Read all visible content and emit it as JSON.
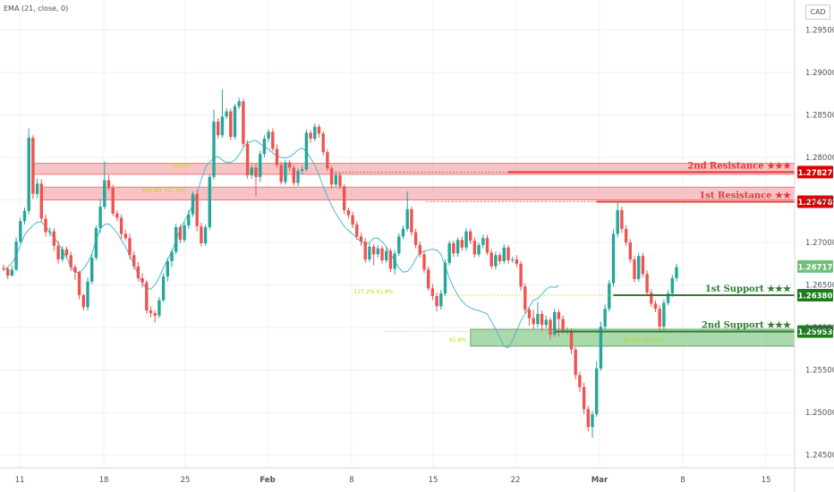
{
  "legend": {
    "label": "EMA (21, close, 0)"
  },
  "currency": "CAD",
  "colors": {
    "up": "#26a69a",
    "down": "#ef5350",
    "ema": "#4fb6d6",
    "resistance": "#e53935",
    "resistance_zone": "#f4a3a8",
    "support": "#2e7d32",
    "support_zone": "#7cc47f",
    "fib": "#c3d500",
    "price_tag": "#6fbf7a",
    "axis_text": "#4c525e"
  },
  "chart_data": {
    "type": "candlestick",
    "x_ticks": [
      "11",
      "18",
      "25",
      "Feb",
      "8",
      "15",
      "22",
      "Mar",
      "8",
      "15"
    ],
    "y_ticks": [
      "1.29500",
      "1.29000",
      "1.28500",
      "1.28000",
      "1.27500",
      "1.27000",
      "1.26500",
      "1.26000",
      "1.25500",
      "1.25000",
      "1.24500"
    ],
    "ylim": [
      1.2435,
      1.2985
    ],
    "levels": [
      {
        "label": "2nd Resistance ★★★",
        "value": 1.27827,
        "tag": "1.27827",
        "kind": "resistance"
      },
      {
        "label": "1st Resistance ★★",
        "value": 1.27478,
        "tag": "1.27478",
        "kind": "resistance"
      },
      {
        "label": "1st Support ★★★",
        "value": 1.2638,
        "tag": "1.26380",
        "kind": "support"
      },
      {
        "label": "2nd Support ★★★",
        "value": 1.25953,
        "tag": "1.25953",
        "kind": "support"
      }
    ],
    "last_price": {
      "value": 1.26717,
      "tag": "1.26717"
    },
    "zones": [
      {
        "kind": "resistance",
        "from": 1.278,
        "to": 1.2793,
        "start_index": 7
      },
      {
        "kind": "resistance",
        "from": 1.275,
        "to": 1.2765,
        "start_index": 9
      },
      {
        "kind": "support",
        "from": 1.2578,
        "to": 1.2598,
        "start_index": 111
      }
    ],
    "fib_labels": [
      {
        "text": "78.6%",
        "price": 1.2788,
        "index": 42
      },
      {
        "text": "161.8% 127.2%",
        "price": 1.2758,
        "index": 38
      },
      {
        "text": "127.2% 61.8%",
        "price": 1.2639,
        "index": 88
      },
      {
        "text": "61.8%",
        "price": 1.2582,
        "index": 108
      },
      {
        "text": "61.8% 127.2%",
        "price": 1.2582,
        "index": 152
      }
    ],
    "ema": [
      1.2667,
      1.2671,
      1.2676,
      1.2684,
      1.2697,
      1.2709,
      1.2715,
      1.272,
      1.2724,
      1.2724,
      1.2719,
      1.2712,
      1.2706,
      1.2699,
      1.269,
      1.2682,
      1.2672,
      1.2665,
      1.2664,
      1.2669,
      1.2676,
      1.2687,
      1.2703,
      1.2716,
      1.2721,
      1.2722,
      1.2717,
      1.2711,
      1.2703,
      1.2695,
      1.2685,
      1.2674,
      1.2662,
      1.2652,
      1.2646,
      1.2645,
      1.265,
      1.2659,
      1.267,
      1.268,
      1.2689,
      1.2702,
      1.2716,
      1.2725,
      1.2734,
      1.2744,
      1.2758,
      1.2774,
      1.2788,
      1.2795,
      1.2799,
      1.2801,
      1.2797,
      1.2794,
      1.2794,
      1.2797,
      1.2803,
      1.2812,
      1.2817,
      1.2819,
      1.282,
      1.2816,
      1.2812,
      1.281,
      1.2805,
      1.2802,
      1.28,
      1.2799,
      1.2801,
      1.2804,
      1.2809,
      1.2811,
      1.2807,
      1.2799,
      1.2791,
      1.2779,
      1.2766,
      1.2754,
      1.2743,
      1.2734,
      1.2726,
      1.2719,
      1.2714,
      1.271,
      1.2705,
      1.2701,
      1.2698,
      1.27,
      1.2705,
      1.2705,
      1.2701,
      1.2695,
      1.2687,
      1.2678,
      1.267,
      1.2665,
      1.2666,
      1.2671,
      1.2681,
      1.2688,
      1.269,
      1.2691,
      1.2692,
      1.2691,
      1.2686,
      1.2672,
      1.2658,
      1.2647,
      1.2638,
      1.2631,
      1.2626,
      1.2623,
      1.2621,
      1.262,
      1.2618,
      1.2616,
      1.2607,
      1.2598,
      1.2588,
      1.2578,
      1.2576,
      1.2585,
      1.2596,
      1.2608,
      1.2616,
      1.2624,
      1.2632,
      1.2634,
      1.2639,
      1.2645,
      1.2648,
      1.2647,
      1.2649
    ],
    "candles": [
      [
        1.267,
        1.2669,
        1.2674,
        1.2666
      ],
      [
        1.2669,
        1.2661,
        1.2671,
        1.2657
      ],
      [
        1.2661,
        1.2668,
        1.2673,
        1.266
      ],
      [
        1.2668,
        1.2701,
        1.2706,
        1.2666
      ],
      [
        1.2701,
        1.2725,
        1.2729,
        1.2699
      ],
      [
        1.2725,
        1.2737,
        1.2741,
        1.2721
      ],
      [
        1.2737,
        1.2823,
        1.2834,
        1.2733
      ],
      [
        1.2823,
        1.2757,
        1.2826,
        1.2751
      ],
      [
        1.2757,
        1.2769,
        1.2775,
        1.2752
      ],
      [
        1.2769,
        1.2728,
        1.2774,
        1.2724
      ],
      [
        1.2728,
        1.2712,
        1.2733,
        1.2707
      ],
      [
        1.2712,
        1.2713,
        1.2718,
        1.2707
      ],
      [
        1.2713,
        1.2696,
        1.2717,
        1.269
      ],
      [
        1.2696,
        1.268,
        1.2702,
        1.2675
      ],
      [
        1.268,
        1.2692,
        1.2696,
        1.2677
      ],
      [
        1.2692,
        1.2685,
        1.2695,
        1.2681
      ],
      [
        1.2685,
        1.2671,
        1.2689,
        1.2666
      ],
      [
        1.2671,
        1.2665,
        1.2674,
        1.2656
      ],
      [
        1.2665,
        1.2638,
        1.2667,
        1.2633
      ],
      [
        1.2638,
        1.2624,
        1.264,
        1.262
      ],
      [
        1.2624,
        1.2654,
        1.2659,
        1.262
      ],
      [
        1.2654,
        1.2682,
        1.2686,
        1.2651
      ],
      [
        1.2682,
        1.2717,
        1.272,
        1.2679
      ],
      [
        1.2717,
        1.2742,
        1.2751,
        1.2711
      ],
      [
        1.2742,
        1.2773,
        1.2795,
        1.2739
      ],
      [
        1.2773,
        1.2764,
        1.2779,
        1.2761
      ],
      [
        1.2764,
        1.2734,
        1.2768,
        1.2731
      ],
      [
        1.2734,
        1.2729,
        1.2738,
        1.2725
      ],
      [
        1.2729,
        1.271,
        1.2733,
        1.2704
      ],
      [
        1.271,
        1.2705,
        1.2715,
        1.2702
      ],
      [
        1.2705,
        1.2685,
        1.271,
        1.268
      ],
      [
        1.2685,
        1.2672,
        1.269,
        1.2668
      ],
      [
        1.2672,
        1.2658,
        1.2677,
        1.2654
      ],
      [
        1.2658,
        1.2653,
        1.2664,
        1.2647
      ],
      [
        1.2653,
        1.262,
        1.2656,
        1.2616
      ],
      [
        1.262,
        1.2617,
        1.2625,
        1.2612
      ],
      [
        1.2617,
        1.2614,
        1.262,
        1.2606
      ],
      [
        1.2614,
        1.2632,
        1.2636,
        1.2611
      ],
      [
        1.2632,
        1.266,
        1.2664,
        1.263
      ],
      [
        1.266,
        1.2678,
        1.2682,
        1.2654
      ],
      [
        1.2678,
        1.2689,
        1.2692,
        1.2671
      ],
      [
        1.2689,
        1.2718,
        1.2722,
        1.2686
      ],
      [
        1.2718,
        1.2703,
        1.2721,
        1.2699
      ],
      [
        1.2703,
        1.272,
        1.2723,
        1.27
      ],
      [
        1.272,
        1.2733,
        1.2738,
        1.2716
      ],
      [
        1.2733,
        1.2757,
        1.276,
        1.273
      ],
      [
        1.2757,
        1.2719,
        1.2761,
        1.2713
      ],
      [
        1.2719,
        1.2699,
        1.2723,
        1.2695
      ],
      [
        1.2699,
        1.2718,
        1.2721,
        1.2696
      ],
      [
        1.2718,
        1.2777,
        1.278,
        1.2715
      ],
      [
        1.2777,
        1.2842,
        1.2856,
        1.2774
      ],
      [
        1.2842,
        1.2826,
        1.2846,
        1.2822
      ],
      [
        1.2826,
        1.2848,
        1.288,
        1.2823
      ],
      [
        1.2848,
        1.2854,
        1.2858,
        1.2845
      ],
      [
        1.2854,
        1.2824,
        1.2857,
        1.282
      ],
      [
        1.2824,
        1.286,
        1.2863,
        1.2821
      ],
      [
        1.286,
        1.2866,
        1.287,
        1.2857
      ],
      [
        1.2866,
        1.2816,
        1.2869,
        1.2812
      ],
      [
        1.2816,
        1.2779,
        1.282,
        1.2775
      ],
      [
        1.2779,
        1.2788,
        1.2791,
        1.2775
      ],
      [
        1.2788,
        1.2777,
        1.2792,
        1.2754
      ],
      [
        1.2777,
        1.2804,
        1.2808,
        1.2771
      ],
      [
        1.2804,
        1.2822,
        1.2826,
        1.28
      ],
      [
        1.2822,
        1.283,
        1.2833,
        1.2818
      ],
      [
        1.283,
        1.281,
        1.2834,
        1.2807
      ],
      [
        1.281,
        1.2791,
        1.2815,
        1.2788
      ],
      [
        1.2791,
        1.2771,
        1.2795,
        1.2768
      ],
      [
        1.2771,
        1.2794,
        1.2797,
        1.2768
      ],
      [
        1.2794,
        1.2788,
        1.2797,
        1.2784
      ],
      [
        1.2788,
        1.277,
        1.2791,
        1.2767
      ],
      [
        1.277,
        1.2784,
        1.2787,
        1.2766
      ],
      [
        1.2784,
        1.2786,
        1.279,
        1.278
      ],
      [
        1.2786,
        1.2829,
        1.2833,
        1.2783
      ],
      [
        1.2829,
        1.2822,
        1.2832,
        1.2817
      ],
      [
        1.2822,
        1.2836,
        1.284,
        1.2819
      ],
      [
        1.2836,
        1.2828,
        1.2839,
        1.2823
      ],
      [
        1.2828,
        1.2806,
        1.2831,
        1.2802
      ],
      [
        1.2806,
        1.2787,
        1.281,
        1.2784
      ],
      [
        1.2787,
        1.2768,
        1.279,
        1.2763
      ],
      [
        1.2768,
        1.2779,
        1.2784,
        1.2765
      ],
      [
        1.2779,
        1.2766,
        1.2782,
        1.2763
      ],
      [
        1.2766,
        1.2738,
        1.2769,
        1.2733
      ],
      [
        1.2738,
        1.2732,
        1.2741,
        1.2728
      ],
      [
        1.2732,
        1.2721,
        1.2736,
        1.2717
      ],
      [
        1.2721,
        1.2707,
        1.2725,
        1.2703
      ],
      [
        1.2707,
        1.2701,
        1.2711,
        1.2696
      ],
      [
        1.2701,
        1.268,
        1.2705,
        1.2676
      ],
      [
        1.268,
        1.2695,
        1.2699,
        1.2677
      ],
      [
        1.2695,
        1.2686,
        1.2698,
        1.2673
      ],
      [
        1.2686,
        1.2693,
        1.2697,
        1.2682
      ],
      [
        1.2693,
        1.2679,
        1.2696,
        1.2675
      ],
      [
        1.2679,
        1.269,
        1.2694,
        1.2676
      ],
      [
        1.269,
        1.2669,
        1.2693,
        1.2665
      ],
      [
        1.2669,
        1.2687,
        1.2691,
        1.2662
      ],
      [
        1.2687,
        1.2707,
        1.2711,
        1.2684
      ],
      [
        1.2707,
        1.2716,
        1.272,
        1.2704
      ],
      [
        1.2716,
        1.2739,
        1.276,
        1.2713
      ],
      [
        1.2739,
        1.2712,
        1.2742,
        1.2708
      ],
      [
        1.2712,
        1.2697,
        1.2716,
        1.2693
      ],
      [
        1.2697,
        1.2686,
        1.2701,
        1.2682
      ],
      [
        1.2686,
        1.2668,
        1.269,
        1.2664
      ],
      [
        1.2668,
        1.2646,
        1.2672,
        1.2643
      ],
      [
        1.2646,
        1.2637,
        1.2651,
        1.2632
      ],
      [
        1.2637,
        1.2625,
        1.2641,
        1.2619
      ],
      [
        1.2625,
        1.264,
        1.2644,
        1.2621
      ],
      [
        1.264,
        1.2676,
        1.268,
        1.2637
      ],
      [
        1.2676,
        1.2699,
        1.2702,
        1.2673
      ],
      [
        1.2699,
        1.2687,
        1.2702,
        1.2683
      ],
      [
        1.2687,
        1.2703,
        1.2706,
        1.2683
      ],
      [
        1.2703,
        1.2694,
        1.2707,
        1.269
      ],
      [
        1.2694,
        1.2713,
        1.2717,
        1.269
      ],
      [
        1.2713,
        1.2702,
        1.2716,
        1.2698
      ],
      [
        1.2702,
        1.2686,
        1.2706,
        1.2682
      ],
      [
        1.2686,
        1.2697,
        1.27,
        1.2683
      ],
      [
        1.2697,
        1.2705,
        1.2709,
        1.2693
      ],
      [
        1.2705,
        1.2688,
        1.2709,
        1.2685
      ],
      [
        1.2688,
        1.2672,
        1.2692,
        1.2669
      ],
      [
        1.2672,
        1.2685,
        1.2689,
        1.2668
      ],
      [
        1.2685,
        1.2678,
        1.2688,
        1.2674
      ],
      [
        1.2678,
        1.2694,
        1.2698,
        1.2675
      ],
      [
        1.2694,
        1.2679,
        1.2697,
        1.2675
      ],
      [
        1.2679,
        1.268,
        1.2683,
        1.2676
      ],
      [
        1.268,
        1.2675,
        1.2685,
        1.2671
      ],
      [
        1.2675,
        1.2648,
        1.2678,
        1.2643
      ],
      [
        1.2648,
        1.2621,
        1.2652,
        1.2617
      ],
      [
        1.2621,
        1.2611,
        1.2624,
        1.2602
      ],
      [
        1.2611,
        1.2604,
        1.2621,
        1.2598
      ],
      [
        1.2604,
        1.2616,
        1.263,
        1.26
      ],
      [
        1.2616,
        1.2603,
        1.262,
        1.2596
      ],
      [
        1.2603,
        1.2609,
        1.2614,
        1.2599
      ],
      [
        1.2609,
        1.2592,
        1.2612,
        1.2586
      ],
      [
        1.2592,
        1.2618,
        1.2622,
        1.2589
      ],
      [
        1.2618,
        1.261,
        1.2621,
        1.259
      ],
      [
        1.261,
        1.2596,
        1.2614,
        1.2593
      ],
      [
        1.2596,
        1.2596,
        1.26,
        1.2592
      ],
      [
        1.2596,
        1.2574,
        1.2599,
        1.2569
      ],
      [
        1.2574,
        1.2544,
        1.2577,
        1.2539
      ],
      [
        1.2544,
        1.253,
        1.2548,
        1.2524
      ],
      [
        1.253,
        1.2504,
        1.2535,
        1.2498
      ],
      [
        1.2504,
        1.2483,
        1.2508,
        1.2478
      ],
      [
        1.2483,
        1.2498,
        1.2502,
        1.247
      ],
      [
        1.2498,
        1.2552,
        1.256,
        1.2495
      ],
      [
        1.2552,
        1.2601,
        1.2607,
        1.2549
      ],
      [
        1.2601,
        1.2622,
        1.2627,
        1.2598
      ],
      [
        1.2622,
        1.2652,
        1.2656,
        1.2619
      ],
      [
        1.2652,
        1.271,
        1.2715,
        1.2648
      ],
      [
        1.271,
        1.2738,
        1.2748,
        1.2706
      ],
      [
        1.2738,
        1.2716,
        1.2742,
        1.2711
      ],
      [
        1.2716,
        1.27,
        1.272,
        1.2696
      ],
      [
        1.27,
        1.268,
        1.2704,
        1.2676
      ],
      [
        1.268,
        1.2657,
        1.2684,
        1.2653
      ],
      [
        1.2657,
        1.2684,
        1.2688,
        1.2654
      ],
      [
        1.2684,
        1.2663,
        1.2688,
        1.2659
      ],
      [
        1.2663,
        1.2641,
        1.2667,
        1.2637
      ],
      [
        1.2641,
        1.2628,
        1.2645,
        1.2624
      ],
      [
        1.2628,
        1.2622,
        1.2632,
        1.2618
      ],
      [
        1.2622,
        1.2601,
        1.2626,
        1.2597
      ],
      [
        1.2601,
        1.2629,
        1.2633,
        1.2598
      ],
      [
        1.2629,
        1.264,
        1.2644,
        1.2626
      ],
      [
        1.264,
        1.2658,
        1.2662,
        1.2636
      ],
      [
        1.2658,
        1.2671,
        1.2675,
        1.2654
      ]
    ]
  }
}
